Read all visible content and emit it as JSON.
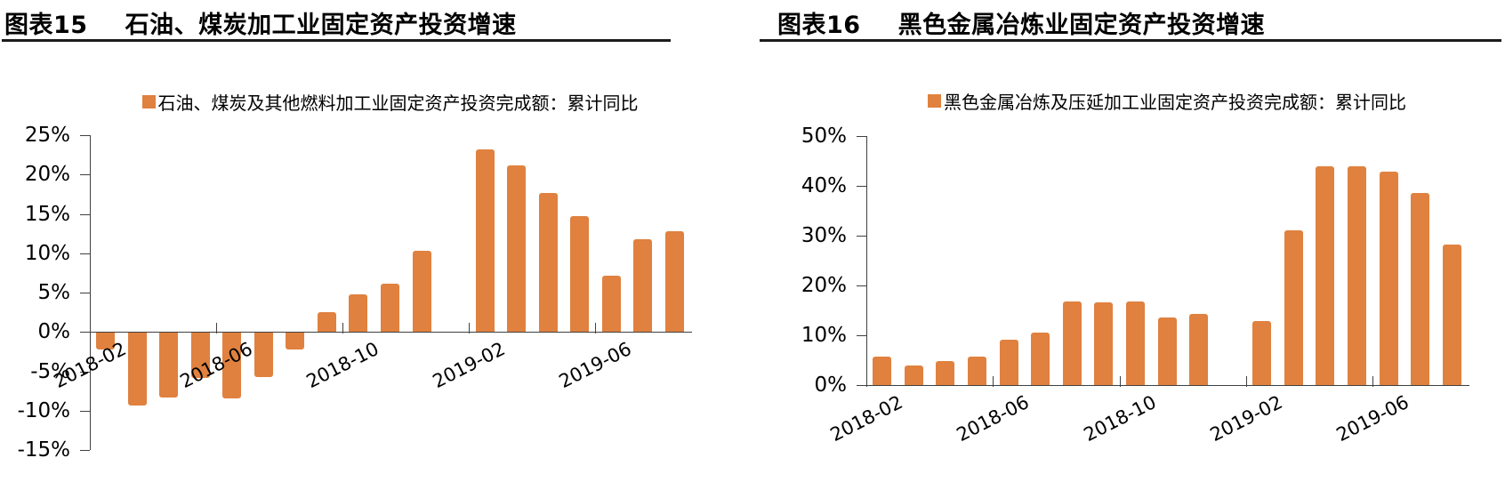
{
  "page_background": "#FFFFFF",
  "chart_data": [
    {
      "type": "bar",
      "figure_label": "图表15",
      "title": "石油、煤炭加工业固定资产投资增速",
      "legend": "石油、煤炭及其他燃料加工业固定资产投资完成额：累计同比",
      "bar_color": "#E0813F",
      "axis_color": "#404040",
      "text_color": "#000000",
      "grid": false,
      "legend_position": "top",
      "categories": [
        "2018-02",
        "2018-03",
        "2018-04",
        "2018-05",
        "2018-06",
        "2018-07",
        "2018-08",
        "2018-09",
        "2018-10",
        "2018-11",
        "2018-12",
        "2019-01",
        "2019-02",
        "2019-03",
        "2019-04",
        "2019-05",
        "2019-06",
        "2019-07",
        "2019-08"
      ],
      "values": [
        -2.2,
        -9.3,
        -8.3,
        -5.8,
        -8.4,
        -5.7,
        -2.2,
        2.5,
        4.8,
        6.1,
        10.3,
        null,
        23.2,
        21.2,
        17.6,
        14.7,
        7.1,
        11.8,
        12.8
      ],
      "ylim": [
        -15,
        25
      ],
      "y_tick_step": 5,
      "y_tick_labels": [
        "25%",
        "20%",
        "15%",
        "10%",
        "5%",
        "0%",
        "-5%",
        "-10%",
        "-15%"
      ],
      "x_tick_labels": [
        "2018-02",
        "2018-06",
        "2018-10",
        "2019-02",
        "2019-06"
      ],
      "x_tick_slots": [
        0,
        4,
        8,
        12,
        16
      ]
    },
    {
      "type": "bar",
      "figure_label": "图表16",
      "title": "黑色金属冶炼业固定资产投资增速",
      "legend": "黑色金属冶炼及压延加工业固定资产投资完成额：累计同比",
      "bar_color": "#E0813F",
      "axis_color": "#404040",
      "text_color": "#000000",
      "grid": false,
      "legend_position": "top",
      "categories": [
        "2018-02",
        "2018-03",
        "2018-04",
        "2018-05",
        "2018-06",
        "2018-07",
        "2018-08",
        "2018-09",
        "2018-10",
        "2018-11",
        "2018-12",
        "2019-01",
        "2019-02",
        "2019-03",
        "2019-04",
        "2019-05",
        "2019-06",
        "2019-07",
        "2019-08"
      ],
      "values": [
        5.8,
        3.9,
        4.9,
        5.8,
        9.1,
        10.5,
        16.8,
        16.6,
        16.7,
        13.5,
        14.3,
        null,
        12.8,
        31.1,
        43.9,
        43.9,
        42.9,
        38.5,
        28.3
      ],
      "ylim": [
        0,
        50
      ],
      "y_tick_step": 10,
      "y_tick_labels": [
        "50%",
        "40%",
        "30%",
        "20%",
        "10%",
        "0%"
      ],
      "x_tick_labels": [
        "2018-02",
        "2018-06",
        "2018-10",
        "2019-02",
        "2019-06"
      ],
      "x_tick_slots": [
        0,
        4,
        8,
        12,
        16
      ]
    }
  ]
}
